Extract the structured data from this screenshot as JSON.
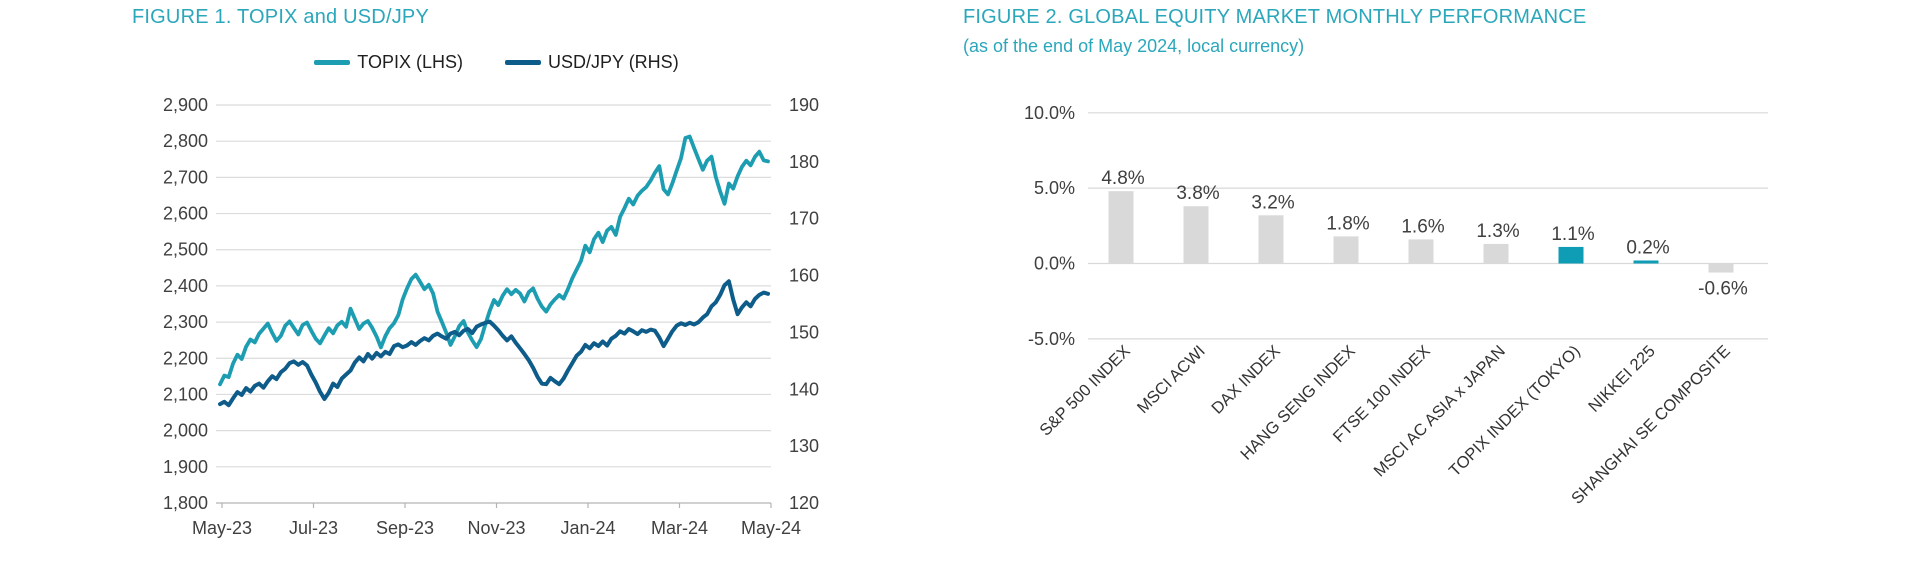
{
  "figure1": {
    "title": "FIGURE 1. TOPIX and USD/JPY",
    "legend": [
      {
        "label": "TOPIX (LHS)",
        "color": "#1D9DB1"
      },
      {
        "label": "USD/JPY (RHS)",
        "color": "#0E5C8A"
      }
    ],
    "chart_data": {
      "type": "line",
      "x_tick_labels": [
        "May-23",
        "Jul-23",
        "Sep-23",
        "Nov-23",
        "Jan-24",
        "Mar-24",
        "May-24"
      ],
      "left_axis": {
        "min": 1800,
        "max": 2900,
        "tick_labels": [
          "2,900",
          "2,800",
          "2,700",
          "2,600",
          "2,500",
          "2,400",
          "2,300",
          "2,200",
          "2,100",
          "2,000",
          "1,900",
          "1,800"
        ]
      },
      "right_axis": {
        "min": 120,
        "max": 190,
        "tick_labels": [
          "190",
          "180",
          "170",
          "160",
          "150",
          "140",
          "130",
          "120"
        ]
      },
      "grid_color": "#dcdcdc",
      "axis_color": "#b3b3b3",
      "tick_text_color": "#404040",
      "series": [
        {
          "name": "TOPIX (LHS)",
          "axis": "left",
          "color": "#1D9DB1",
          "width": 3.8,
          "values": [
            2128,
            2152,
            2148,
            2185,
            2210,
            2198,
            2232,
            2252,
            2244,
            2268,
            2282,
            2296,
            2270,
            2248,
            2262,
            2290,
            2302,
            2284,
            2266,
            2292,
            2299,
            2276,
            2254,
            2241,
            2263,
            2283,
            2269,
            2291,
            2301,
            2287,
            2337,
            2309,
            2281,
            2296,
            2303,
            2284,
            2260,
            2230,
            2261,
            2283,
            2297,
            2319,
            2363,
            2393,
            2419,
            2431,
            2411,
            2391,
            2403,
            2379,
            2329,
            2301,
            2271,
            2237,
            2261,
            2289,
            2303,
            2271,
            2249,
            2231,
            2253,
            2293,
            2331,
            2361,
            2347,
            2373,
            2391,
            2377,
            2389,
            2379,
            2357,
            2383,
            2393,
            2365,
            2343,
            2329,
            2349,
            2363,
            2375,
            2365,
            2391,
            2421,
            2445,
            2469,
            2511,
            2493,
            2529,
            2547,
            2521,
            2553,
            2563,
            2541,
            2591,
            2615,
            2641,
            2625,
            2649,
            2663,
            2673,
            2691,
            2713,
            2731,
            2667,
            2653,
            2683,
            2719,
            2753,
            2809,
            2813,
            2781,
            2751,
            2721,
            2746,
            2757,
            2701,
            2661,
            2627,
            2683,
            2669,
            2703,
            2729,
            2746,
            2733,
            2757,
            2771,
            2747,
            2744
          ]
        },
        {
          "name": "USD/JPY (RHS)",
          "axis": "right",
          "color": "#0E5C8A",
          "width": 4,
          "values": [
            137.4,
            137.8,
            137.2,
            138.4,
            139.5,
            139.0,
            140.2,
            139.6,
            140.6,
            141.0,
            140.3,
            141.4,
            142.3,
            141.8,
            143.0,
            143.6,
            144.6,
            144.9,
            144.3,
            144.8,
            144.2,
            142.6,
            141.2,
            139.6,
            138.3,
            139.4,
            141.0,
            140.4,
            141.9,
            142.6,
            143.3,
            144.7,
            145.6,
            144.9,
            146.2,
            145.4,
            146.4,
            145.8,
            146.6,
            146.2,
            147.6,
            147.9,
            147.4,
            147.7,
            148.3,
            147.8,
            148.5,
            149.0,
            148.6,
            149.4,
            149.8,
            149.3,
            148.9,
            149.8,
            150.1,
            149.5,
            150.3,
            150.6,
            149.9,
            151.0,
            151.4,
            151.7,
            151.9,
            151.2,
            150.4,
            149.4,
            148.6,
            149.3,
            148.2,
            147.2,
            146.2,
            145.1,
            143.8,
            142.2,
            141.0,
            140.9,
            142.0,
            141.4,
            140.9,
            141.9,
            143.3,
            144.6,
            145.9,
            146.6,
            147.8,
            147.2,
            148.1,
            147.6,
            148.4,
            147.7,
            148.9,
            149.4,
            150.2,
            149.8,
            150.6,
            150.2,
            149.7,
            150.4,
            150.1,
            150.5,
            150.3,
            149.1,
            147.6,
            148.9,
            150.2,
            151.2,
            151.6,
            151.3,
            151.7,
            151.4,
            151.8,
            152.6,
            153.2,
            154.6,
            155.3,
            156.6,
            158.3,
            159.0,
            155.8,
            153.2,
            154.4,
            155.3,
            154.6,
            155.9,
            156.6,
            157.0,
            156.8
          ]
        }
      ]
    }
  },
  "figure2": {
    "title": "FIGURE 2. GLOBAL EQUITY MARKET MONTHLY PERFORMANCE",
    "subtitle": "(as of the end of May 2024, local currency)",
    "chart_data": {
      "type": "bar",
      "categories": [
        "S&P 500 INDEX",
        "MSCI ACWI",
        "DAX INDEX",
        "HANG SENG INDEX",
        "FTSE 100 INDEX",
        "MSCI AC ASIA x JAPAN",
        "TOPIX INDEX (TOKYO)",
        "NIKKEI 225",
        "SHANGHAI SE COMPOSITE"
      ],
      "values": [
        4.8,
        3.8,
        3.2,
        1.8,
        1.6,
        1.3,
        1.1,
        0.2,
        -0.6
      ],
      "data_labels": [
        "4.8%",
        "3.8%",
        "3.2%",
        "1.8%",
        "1.6%",
        "1.3%",
        "1.1%",
        "0.2%",
        "-0.6%"
      ],
      "y_tick_labels": [
        "10.0%",
        "5.0%",
        "0.0%",
        "-5.0%"
      ],
      "y_tick_values": [
        10,
        5,
        0,
        -5
      ],
      "ylim": [
        -5,
        10
      ],
      "bar_default_color": "#D9D9D9",
      "bar_highlight_color": "#0F9DB5",
      "highlighted": [
        "TOPIX INDEX (TOKYO)",
        "NIKKEI 225"
      ],
      "colors": [
        "#D9D9D9",
        "#D9D9D9",
        "#D9D9D9",
        "#D9D9D9",
        "#D9D9D9",
        "#D9D9D9",
        "#0F9DB5",
        "#0F9DB5",
        "#D9D9D9"
      ],
      "grid_color": "#d9d9d9",
      "tick_text_color": "#404040",
      "data_label_color": "#404040",
      "category_label_color": "#333333",
      "legend_position": "none",
      "grid": "horizontal"
    }
  }
}
